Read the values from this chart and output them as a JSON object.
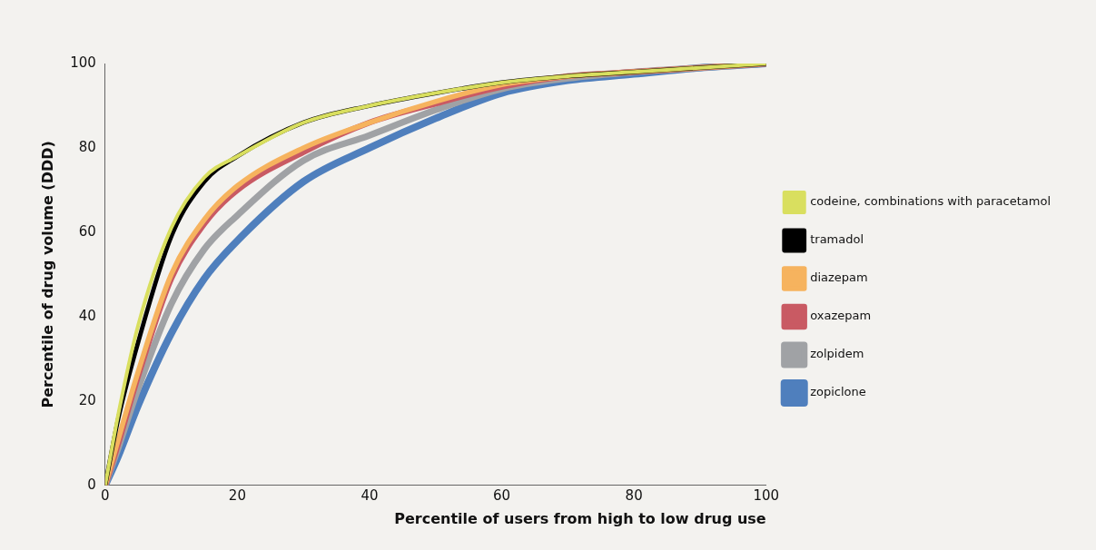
{
  "chart_data": {
    "type": "line",
    "xlabel": "Percentile of users from high to low drug use",
    "ylabel": "Percentile of drug volume (DDD)",
    "x": [
      0,
      2,
      5,
      10,
      15,
      20,
      30,
      40,
      50,
      60,
      70,
      80,
      90,
      100
    ],
    "xlim": [
      0,
      100
    ],
    "xticks": [
      0,
      20,
      40,
      60,
      80,
      100
    ],
    "ylim": [
      0,
      100
    ],
    "yticks": [
      0,
      20,
      40,
      60,
      80,
      100
    ],
    "legend": "right",
    "marker": "none",
    "line_style": "solid",
    "grid": false,
    "series": [
      {
        "name": "codeine, combinations with paracetamol",
        "color": "#d9df5f",
        "values": [
          0,
          17,
          38,
          61,
          73,
          78,
          86,
          90,
          93,
          95.5,
          97,
          98,
          99,
          100
        ]
      },
      {
        "name": "tramadol",
        "color": "#000000",
        "values": [
          0,
          16,
          34,
          59,
          72,
          78,
          86,
          90,
          93,
          95.5,
          97,
          98,
          99,
          100
        ]
      },
      {
        "name": "diazepam",
        "color": "#f6b35e",
        "values": [
          0,
          11,
          27,
          50,
          63,
          71,
          80,
          86,
          91,
          95,
          97,
          98,
          99,
          100
        ]
      },
      {
        "name": "oxazepam",
        "color": "#c95a63",
        "values": [
          0,
          10,
          26,
          49,
          62,
          70,
          79,
          86,
          90.5,
          94.5,
          97,
          98,
          99,
          100
        ]
      },
      {
        "name": "zolpidem",
        "color": "#a0a2a5",
        "values": [
          0,
          9,
          23,
          43,
          56,
          64,
          77,
          83,
          89,
          94,
          96.5,
          98,
          99,
          100
        ]
      },
      {
        "name": "zopiclone",
        "color": "#4f7fbd",
        "values": [
          0,
          7,
          19,
          36,
          49,
          58,
          72,
          80,
          87,
          93,
          96,
          97.5,
          99,
          100
        ]
      }
    ]
  }
}
